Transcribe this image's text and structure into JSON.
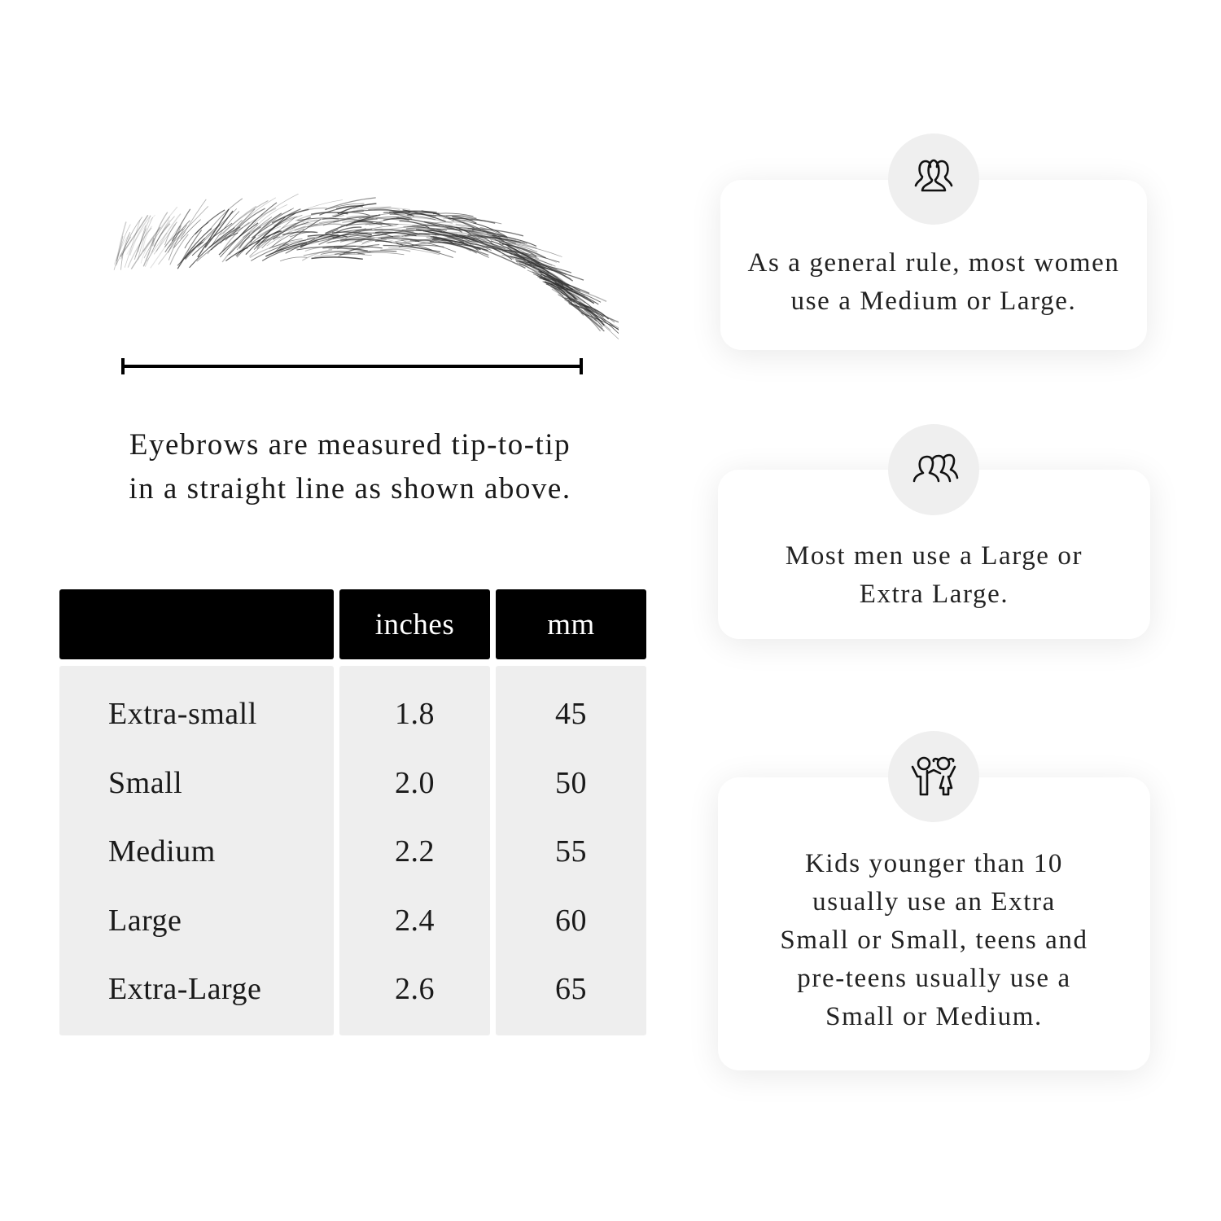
{
  "caption": {
    "line1": "Eyebrows are measured tip-to-tip",
    "line2": "in a straight line as shown above."
  },
  "table": {
    "headers": [
      "",
      "inches",
      "mm"
    ],
    "rows": [
      {
        "size": "Extra-small",
        "inches": "1.8",
        "mm": "45"
      },
      {
        "size": "Small",
        "inches": "2.0",
        "mm": "50"
      },
      {
        "size": "Medium",
        "inches": "2.2",
        "mm": "55"
      },
      {
        "size": "Large",
        "inches": "2.4",
        "mm": "60"
      },
      {
        "size": "Extra-Large",
        "inches": "2.6",
        "mm": "65"
      }
    ]
  },
  "cards": [
    {
      "icon": "women-group-icon",
      "lines": [
        "As a general rule, most women",
        "use a Medium or Large."
      ]
    },
    {
      "icon": "men-group-icon",
      "lines": [
        "Most men use a Large or",
        "Extra Large."
      ]
    },
    {
      "icon": "kids-icon",
      "lines": [
        "Kids younger than 10",
        "usually use an Extra",
        "Small or Small, teens and",
        "pre-teens usually use a",
        "Small or Medium."
      ]
    }
  ],
  "colors": {
    "header_bg": "#000000",
    "body_bg": "#eeeeee",
    "icon_circle": "#efefef"
  }
}
